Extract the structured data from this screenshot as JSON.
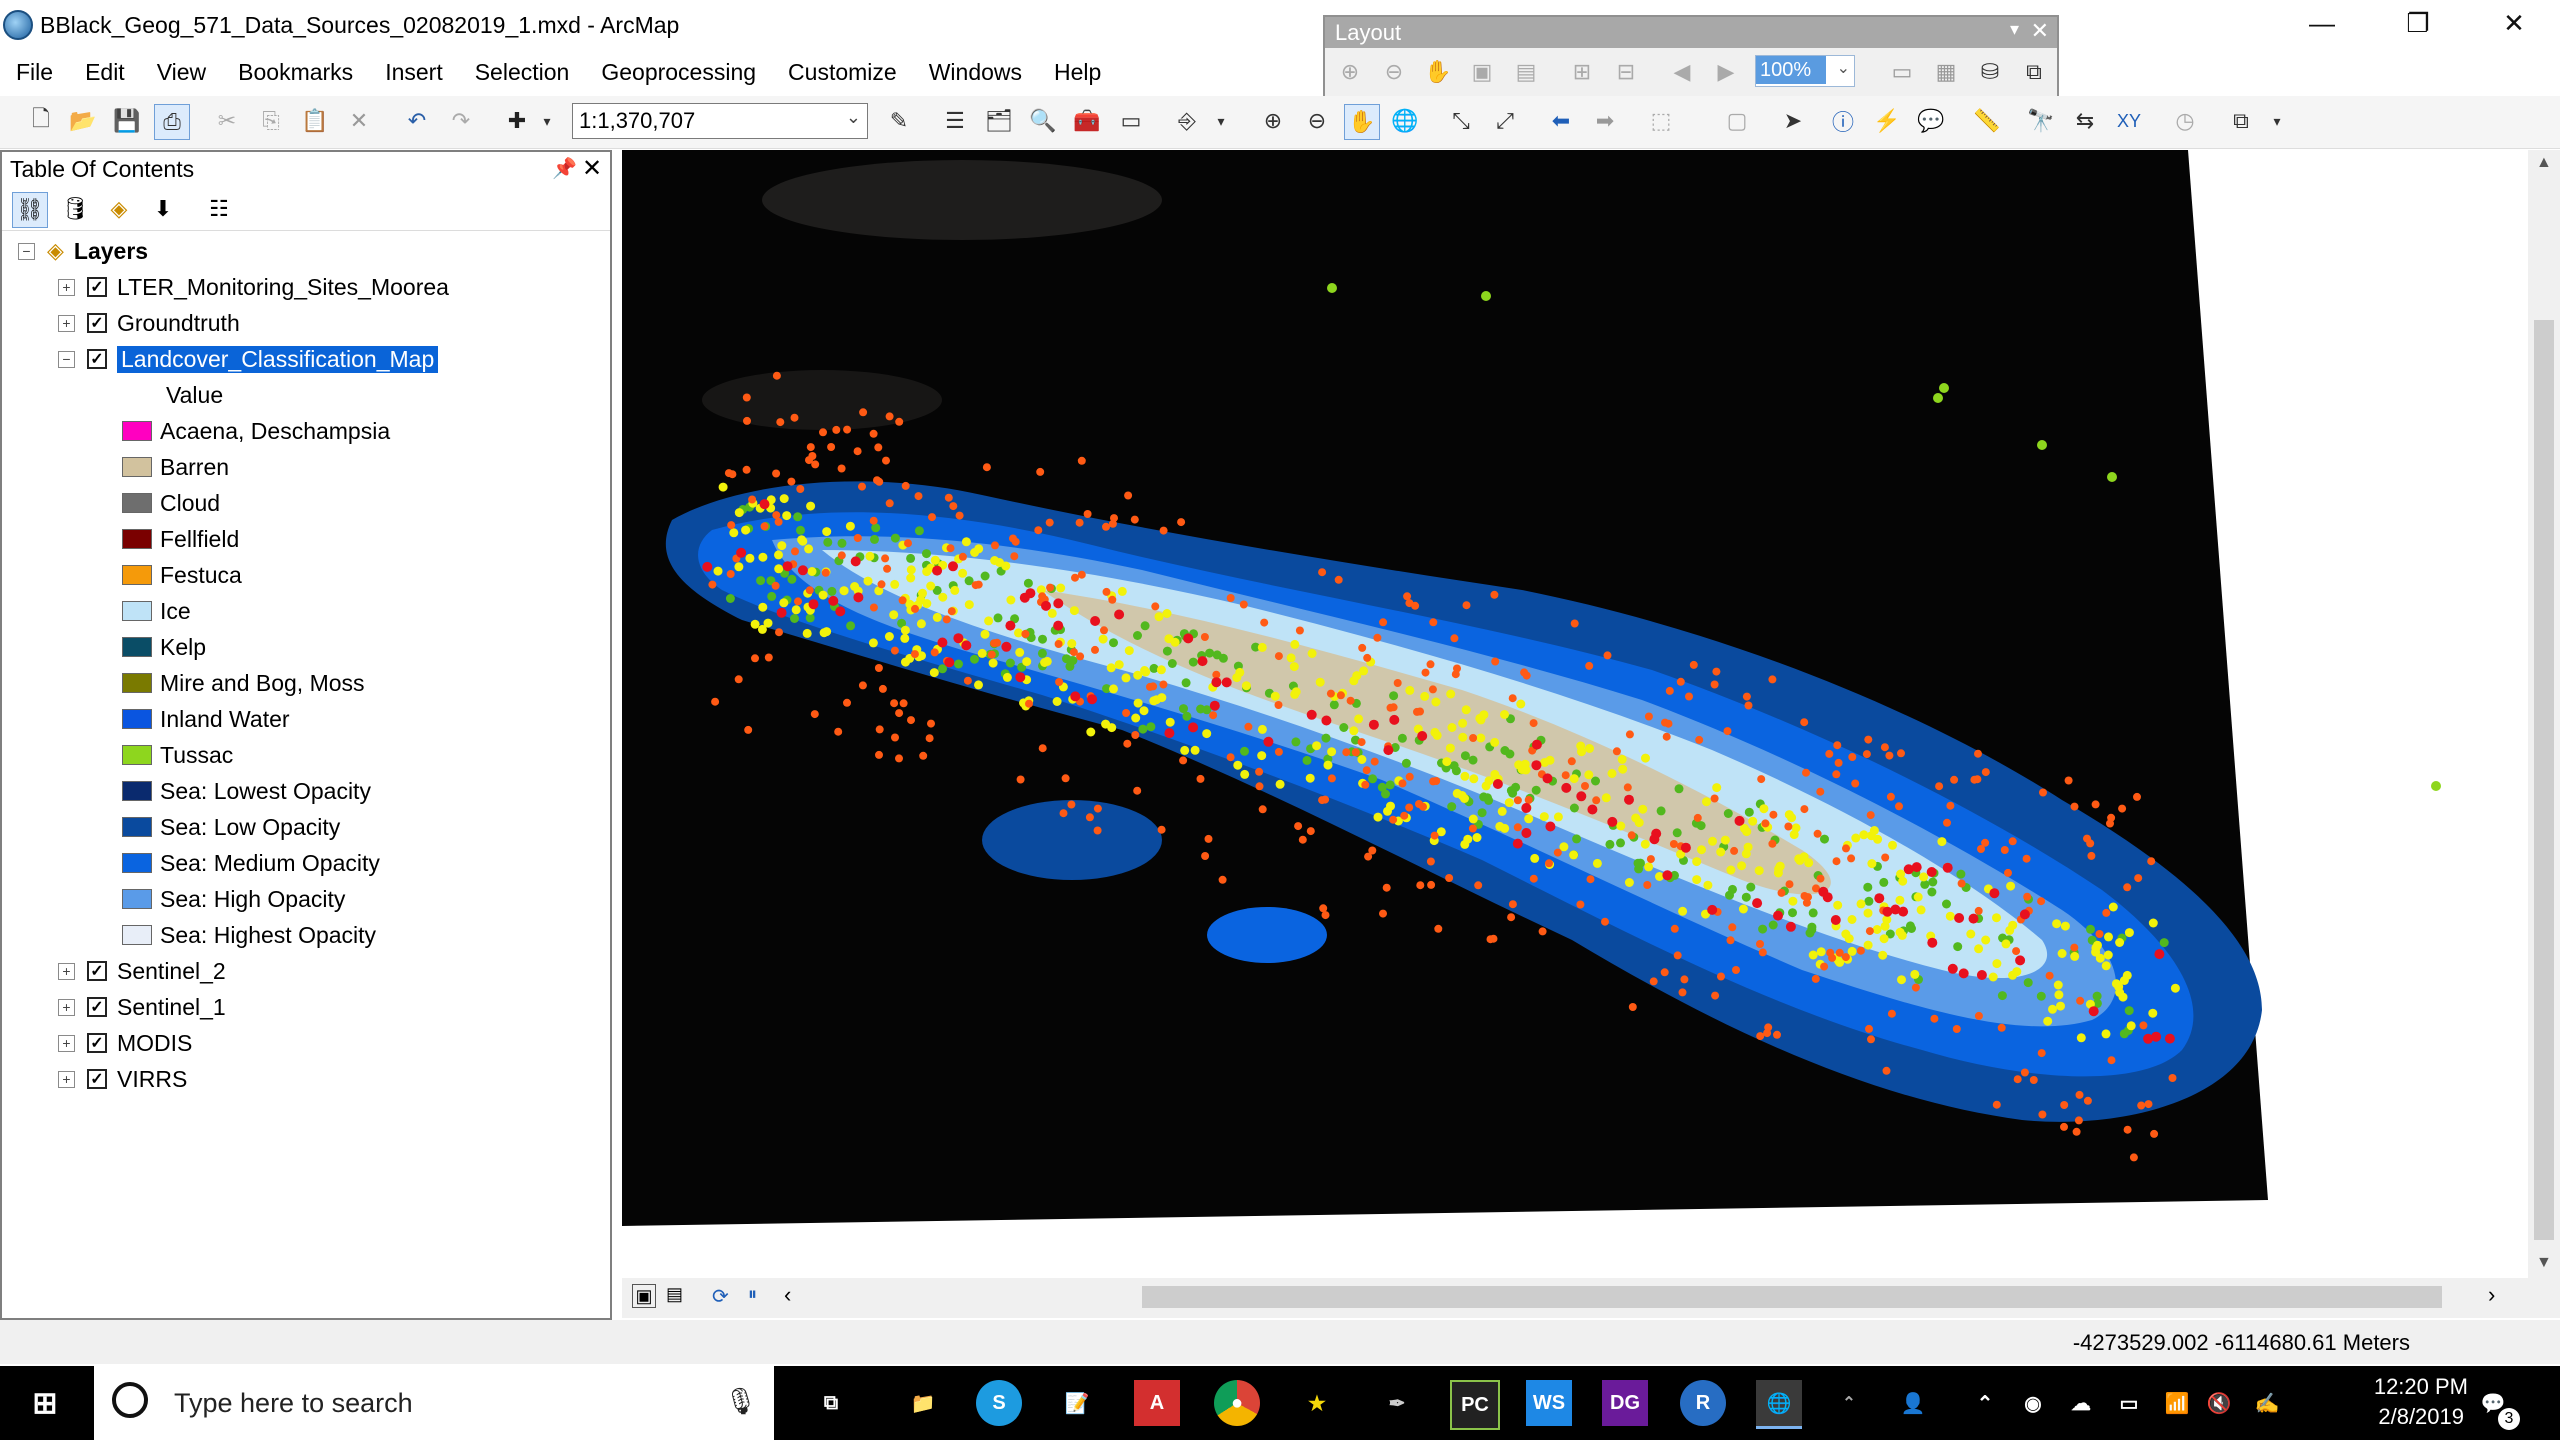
{
  "window": {
    "title": "BBlack_Geog_571_Data_Sources_02082019_1.mxd - ArcMap",
    "minimize": "—",
    "restore": "❐",
    "close": "✕"
  },
  "menu": [
    "File",
    "Edit",
    "View",
    "Bookmarks",
    "Insert",
    "Selection",
    "Geoprocessing",
    "Customize",
    "Windows",
    "Help"
  ],
  "toolbar": {
    "scale": "1:1,370,707",
    "layout_toolbar_title": "Layout",
    "layout_zoom": "100%"
  },
  "toc": {
    "title": "Table Of Contents",
    "root": "Layers",
    "layers": [
      {
        "name": "LTER_Monitoring_Sites_Moorea",
        "checked": true,
        "expanded": false
      },
      {
        "name": "Groundtruth",
        "checked": true,
        "expanded": false
      },
      {
        "name": "Landcover_Classification_Map",
        "checked": true,
        "expanded": true,
        "selected": true
      },
      {
        "name": "Sentinel_2",
        "checked": true,
        "expanded": false
      },
      {
        "name": "Sentinel_1",
        "checked": true,
        "expanded": false
      },
      {
        "name": "MODIS",
        "checked": true,
        "expanded": false
      },
      {
        "name": "VIRRS",
        "checked": true,
        "expanded": false
      }
    ],
    "legend_heading": "Value",
    "legend": [
      {
        "label": "Acaena, Deschampsia",
        "color": "#ff00c0"
      },
      {
        "label": "Barren",
        "color": "#d2c29e"
      },
      {
        "label": "Cloud",
        "color": "#6e6e6e"
      },
      {
        "label": "Fellfield",
        "color": "#7a0000"
      },
      {
        "label": "Festuca",
        "color": "#f59a0a"
      },
      {
        "label": "Ice",
        "color": "#bfe3f7"
      },
      {
        "label": "Kelp",
        "color": "#0a4d66"
      },
      {
        "label": "Mire and Bog, Moss",
        "color": "#7a7a00"
      },
      {
        "label": "Inland Water",
        "color": "#0a55e0"
      },
      {
        "label": "Tussac",
        "color": "#8ed61e"
      },
      {
        "label": "Sea: Lowest Opacity",
        "color": "#0a2a6e"
      },
      {
        "label": "Sea: Low Opacity",
        "color": "#0a4a9e"
      },
      {
        "label": "Sea: Medium Opacity",
        "color": "#0a64e0"
      },
      {
        "label": "Sea: High Opacity",
        "color": "#5a9be8"
      },
      {
        "label": "Sea: Highest Opacity",
        "color": "#e8eef8"
      }
    ]
  },
  "status": {
    "coordinates": "-4273529.002  -6114680.61 Meters"
  },
  "taskbar": {
    "search_placeholder": "Type here to search",
    "time": "12:20 PM",
    "date": "2/8/2019",
    "notification_count": "3"
  }
}
